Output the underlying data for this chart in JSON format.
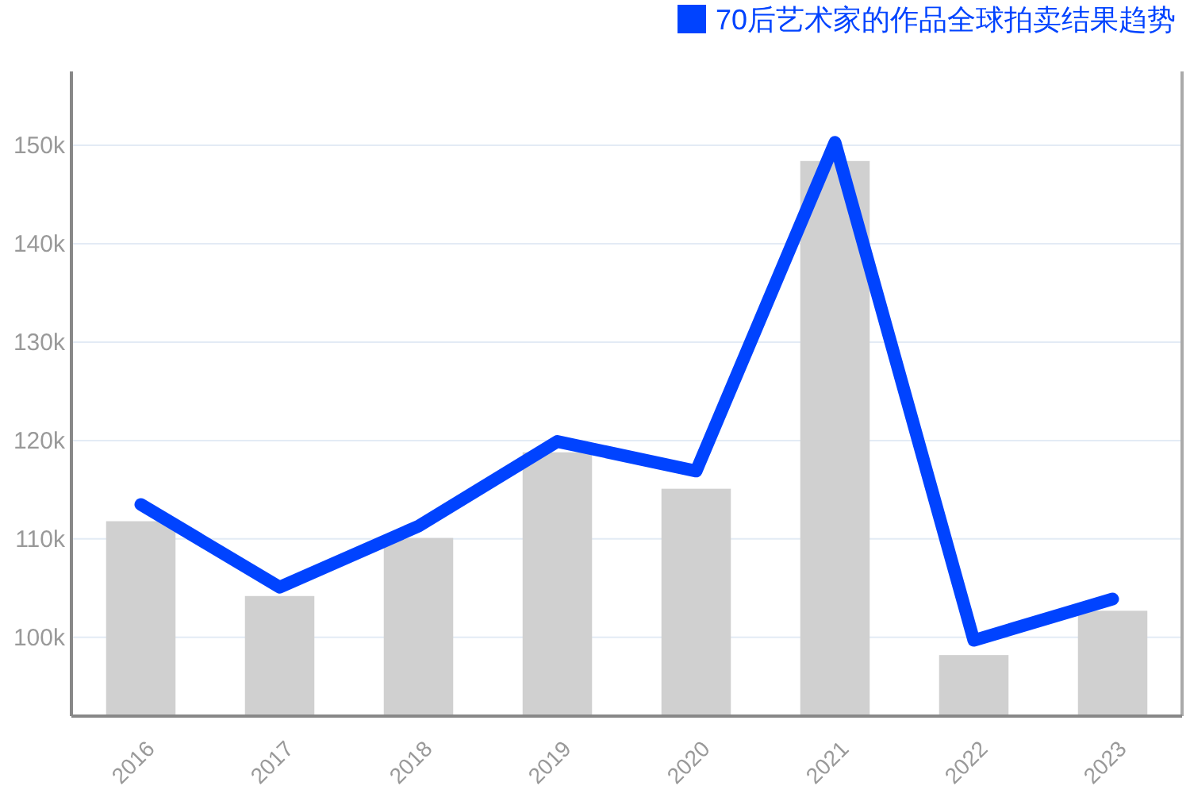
{
  "chart_data": {
    "type": "bar",
    "categories": [
      "2016",
      "2017",
      "2018",
      "2019",
      "2020",
      "2021",
      "2022",
      "2023"
    ],
    "series": [
      {
        "color": "#d0d0d0",
        "values": [
          111.8,
          104.2,
          110.1,
          118.8,
          115.1,
          148.4,
          98.2,
          102.7
        ]
      },
      {
        "type": "line",
        "name": "70后艺术家的作品全球拍卖结果趋势",
        "color": "#0043ff",
        "values": [
          113.5,
          105.1,
          111.3,
          119.9,
          116.9,
          150.3,
          99.7,
          103.9
        ]
      }
    ],
    "ylim": [
      92,
      157.5
    ],
    "yticks": [
      {
        "value": 100,
        "label": "100k"
      },
      {
        "value": 110,
        "label": "110k"
      },
      {
        "value": 120,
        "label": "120k"
      },
      {
        "value": 130,
        "label": "130k"
      },
      {
        "value": 140,
        "label": "140k"
      },
      {
        "value": 150,
        "label": "150k"
      }
    ],
    "grid": "y",
    "legend": "top right",
    "marker": "none"
  }
}
